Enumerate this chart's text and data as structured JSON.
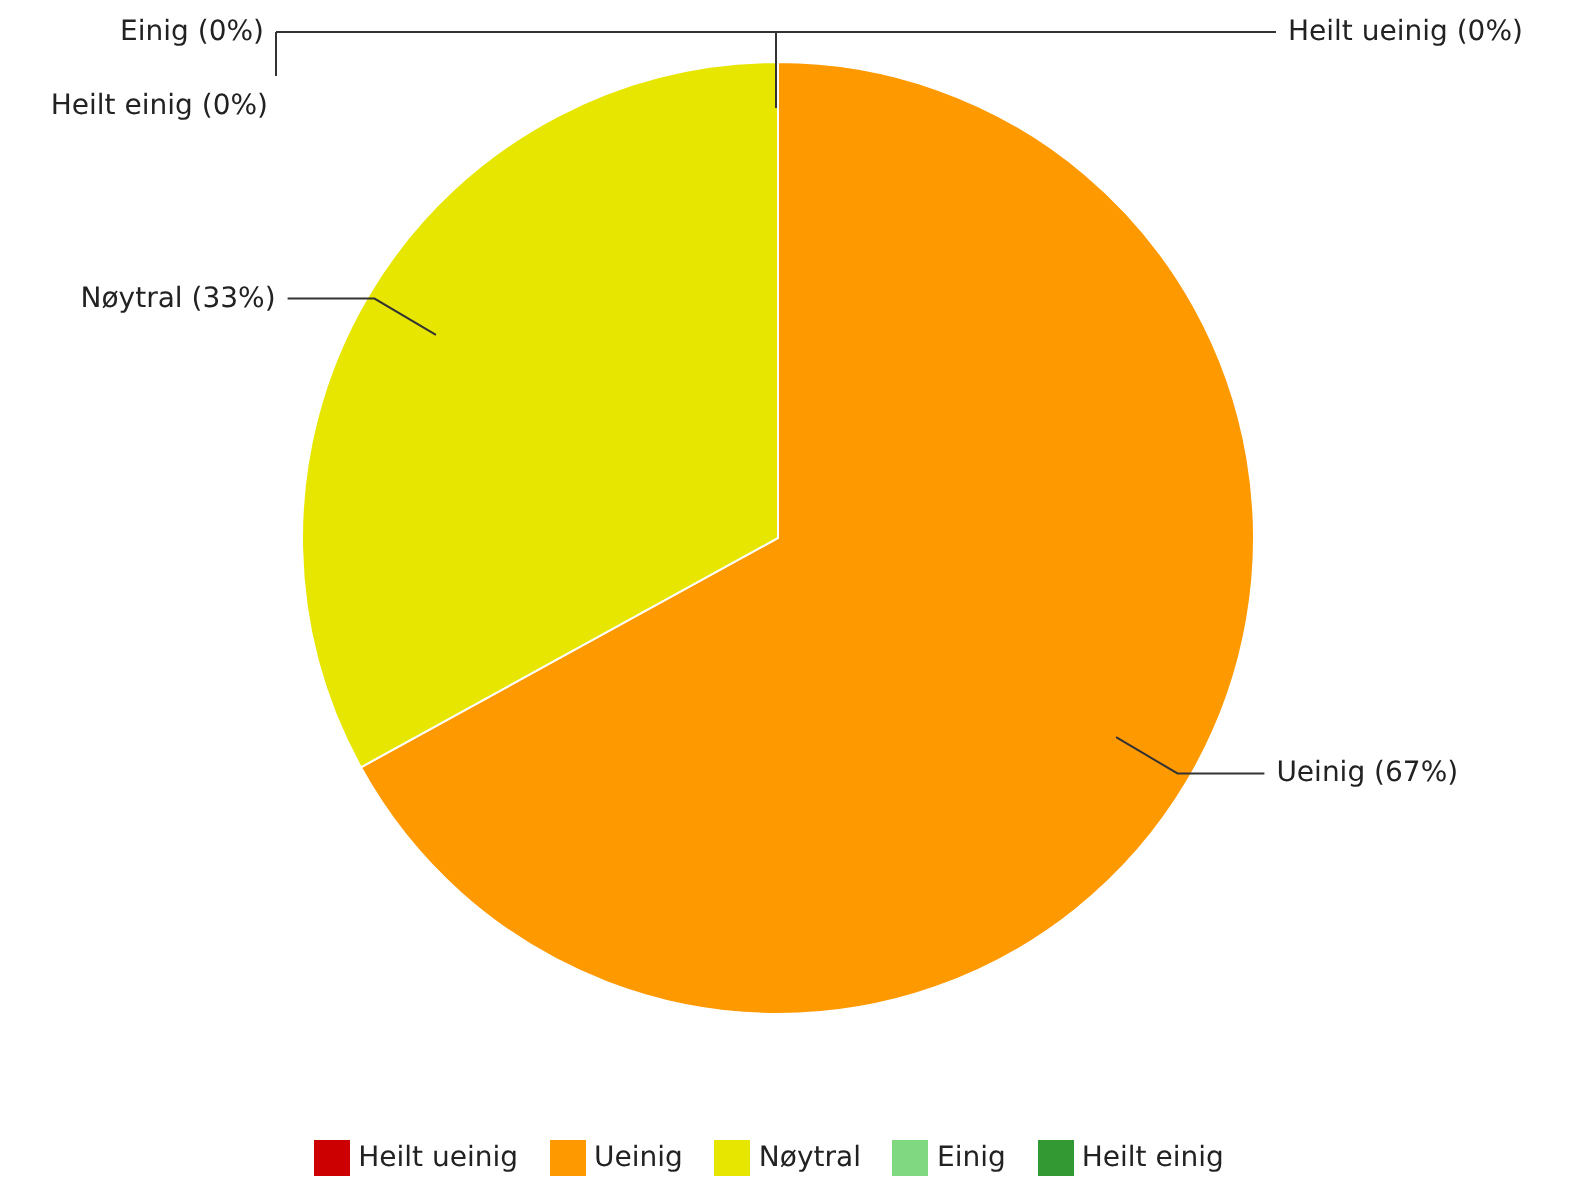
{
  "chart_data": {
    "type": "pie",
    "categories": [
      "Heilt ueinig",
      "Ueinig",
      "Nøytral",
      "Einig",
      "Heilt einig"
    ],
    "values": [
      0,
      67,
      33,
      0,
      0
    ],
    "colors": [
      "#cc0000",
      "#ff9900",
      "#e6e600",
      "#80d980",
      "#339933"
    ],
    "value_labels": [
      "Heilt ueinig (0%)",
      "Ueinig (67%)",
      "Nøytral (33%)",
      "Einig (0%)",
      "Heilt einig (0%)"
    ],
    "legend": "bottom"
  }
}
